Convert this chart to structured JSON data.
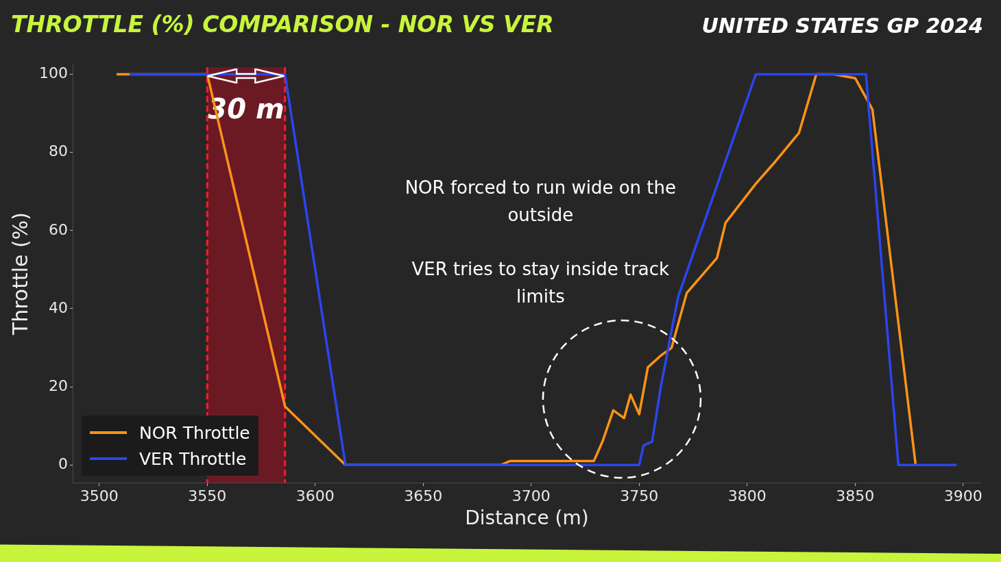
{
  "chart_data": {
    "type": "line",
    "title": "THROTTLE (%) COMPARISON - NOR VS VER",
    "subtitle": "UNITED STATES GP 2024",
    "xlabel": "Distance (m)",
    "ylabel": "Throttle (%)",
    "xlim": [
      3488,
      3908
    ],
    "xticks": [
      3500,
      3550,
      3600,
      3650,
      3700,
      3750,
      3800,
      3850,
      3900
    ],
    "ylim": [
      -4.5,
      102.5
    ],
    "yticks": [
      0,
      20,
      40,
      60,
      80,
      100
    ],
    "grid": false,
    "legend": "bottom left",
    "line_style": "solid",
    "marker": "none",
    "series": [
      {
        "name": "NOR Throttle",
        "color": "#ff9317",
        "x": [
          3508,
          3550,
          3586,
          3614,
          3686,
          3690,
          3729,
          3733,
          3738,
          3743,
          3746,
          3750,
          3754,
          3760,
          3765,
          3772,
          3786,
          3790,
          3804,
          3812,
          3824,
          3832,
          3840,
          3850,
          3858,
          3878
        ],
        "values": [
          100,
          100,
          15,
          0,
          0,
          1,
          1,
          6,
          14,
          12,
          18,
          13,
          25,
          28,
          30,
          44,
          53,
          62,
          72,
          77,
          85,
          100,
          100,
          99,
          91,
          0
        ]
      },
      {
        "name": "VER Throttle",
        "color": "#2b45f0",
        "x": [
          3514,
          3586,
          3614,
          3750,
          3752,
          3756,
          3760,
          3768,
          3804,
          3855,
          3870,
          3897
        ],
        "values": [
          100,
          100,
          0,
          0,
          5,
          6,
          20,
          43,
          100,
          100,
          0,
          0
        ]
      }
    ],
    "bands": [
      {
        "axis": "x",
        "from": 3550,
        "to": 3586,
        "label": "30 m",
        "color": "#6b1a24"
      }
    ],
    "ref_lines": [
      {
        "axis": "x",
        "value": 3550,
        "color": "#ff1a2a",
        "line_style": "dashed"
      },
      {
        "axis": "x",
        "value": 3586,
        "color": "#ff1a2a",
        "line_style": "dashed"
      }
    ],
    "annotations": [
      "NOR forced to run wide on the outside",
      "VER tries to stay inside track limits"
    ]
  }
}
